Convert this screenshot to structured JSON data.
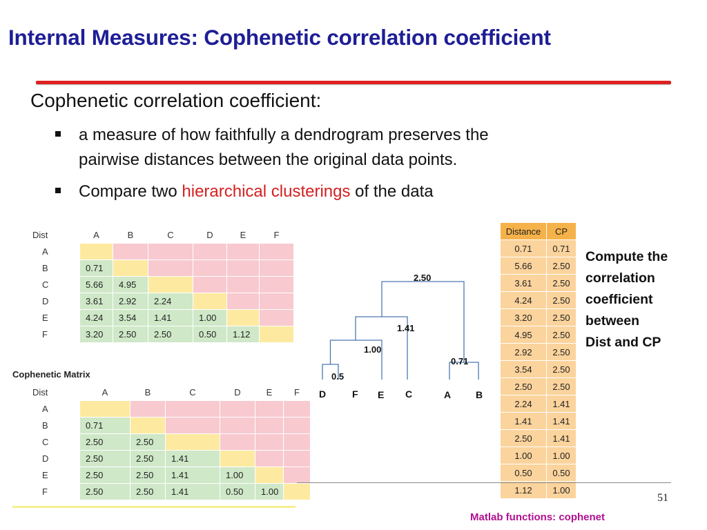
{
  "slide": {
    "title": "Internal Measures: Cophenetic correlation coefficient",
    "subtitle": "Cophenetic correlation coefficient:",
    "bullet1_line1": "a measure of how faithfully a dendrogram preserves the",
    "bullet1_line2": "pairwise distances between the original data points.",
    "bullet2_pre": "Compare two ",
    "bullet2_highlight": "hierarchical clusterings",
    "bullet2_post": " of the data",
    "page_number": "51",
    "footer_note": "Matlab functions: cophenet",
    "accent_color": "#1e1e96",
    "highlight_color": "#d42020"
  },
  "dist_matrix": {
    "corner": "Dist",
    "cols": [
      "A",
      "B",
      "C",
      "D",
      "E",
      "F"
    ],
    "rows": [
      {
        "label": "A",
        "cells": [
          "",
          "",
          "",
          "",
          "",
          ""
        ]
      },
      {
        "label": "B",
        "cells": [
          "0.71",
          "",
          "",
          "",
          "",
          ""
        ]
      },
      {
        "label": "C",
        "cells": [
          "5.66",
          "4.95",
          "",
          "",
          "",
          ""
        ]
      },
      {
        "label": "D",
        "cells": [
          "3.61",
          "2.92",
          "2.24",
          "",
          "",
          ""
        ]
      },
      {
        "label": "E",
        "cells": [
          "4.24",
          "3.54",
          "1.41",
          "1.00",
          "",
          ""
        ]
      },
      {
        "label": "F",
        "cells": [
          "3.20",
          "2.50",
          "2.50",
          "0.50",
          "1.12",
          ""
        ]
      }
    ]
  },
  "cophenetic_matrix": {
    "title": "Cophenetic Matrix",
    "corner": "Dist",
    "cols": [
      "A",
      "B",
      "C",
      "D",
      "E",
      "F"
    ],
    "rows": [
      {
        "label": "A",
        "cells": [
          "",
          "",
          "",
          "",
          "",
          ""
        ]
      },
      {
        "label": "B",
        "cells": [
          "0.71",
          "",
          "",
          "",
          "",
          ""
        ]
      },
      {
        "label": "C",
        "cells": [
          "2.50",
          "2.50",
          "",
          "",
          "",
          ""
        ]
      },
      {
        "label": "D",
        "cells": [
          "2.50",
          "2.50",
          "1.41",
          "",
          "",
          ""
        ]
      },
      {
        "label": "E",
        "cells": [
          "2.50",
          "2.50",
          "1.41",
          "1.00",
          "",
          ""
        ]
      },
      {
        "label": "F",
        "cells": [
          "2.50",
          "2.50",
          "1.41",
          "0.50",
          "1.00",
          ""
        ]
      }
    ]
  },
  "dendrogram": {
    "leaves": [
      "D",
      "F",
      "E",
      "C",
      "A",
      "B"
    ],
    "merges": [
      "0.5",
      "1.00",
      "1.41",
      "0.71",
      "2.50"
    ]
  },
  "distance_table": {
    "header": [
      "Distance",
      "CP"
    ],
    "rows": [
      [
        "0.71",
        "0.71"
      ],
      [
        "5.66",
        "2.50"
      ],
      [
        "3.61",
        "2.50"
      ],
      [
        "4.24",
        "2.50"
      ],
      [
        "3.20",
        "2.50"
      ],
      [
        "4.95",
        "2.50"
      ],
      [
        "2.92",
        "2.50"
      ],
      [
        "3.54",
        "2.50"
      ],
      [
        "2.50",
        "2.50"
      ],
      [
        "2.24",
        "1.41"
      ],
      [
        "1.41",
        "1.41"
      ],
      [
        "2.50",
        "1.41"
      ],
      [
        "1.00",
        "1.00"
      ],
      [
        "0.50",
        "0.50"
      ],
      [
        "1.12",
        "1.00"
      ]
    ]
  },
  "side_note": {
    "lines": [
      "Compute the",
      "correlation",
      "coefficient",
      "between",
      "Dist and CP"
    ]
  }
}
